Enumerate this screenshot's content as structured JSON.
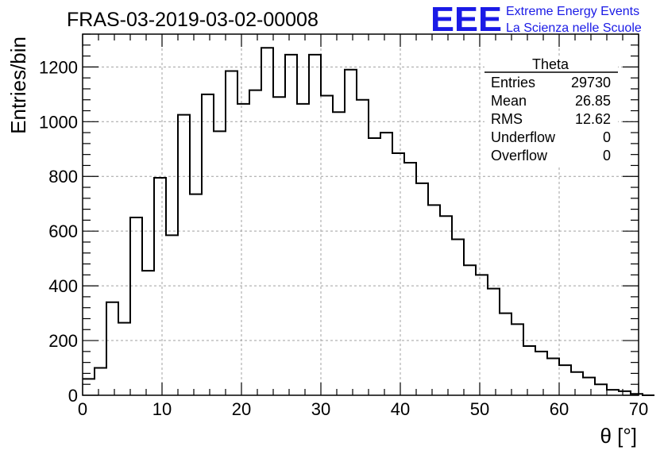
{
  "title": "FRAS-03-2019-03-02-00008",
  "logo": {
    "mark": "EEE",
    "line1": "Extreme Energy Events",
    "line2": "La Scienza nelle Scuole",
    "color": "#1a1ae6"
  },
  "stats_box": {
    "name": "Theta",
    "rows": [
      {
        "label": "Entries",
        "value": "29730"
      },
      {
        "label": "Mean",
        "value": "26.85"
      },
      {
        "label": "RMS",
        "value": "12.62"
      },
      {
        "label": "Underflow",
        "value": "0"
      },
      {
        "label": "Overflow",
        "value": "0"
      }
    ]
  },
  "chart_data": {
    "type": "histogram",
    "title": "FRAS-03-2019-03-02-00008",
    "xlabel": "θ [°]",
    "ylabel": "Entries/bin",
    "xlim": [
      0,
      70
    ],
    "ylim": [
      0,
      1320
    ],
    "x_ticks": [
      0,
      10,
      20,
      30,
      40,
      50,
      60,
      70
    ],
    "y_ticks": [
      0,
      200,
      400,
      600,
      800,
      1000,
      1200
    ],
    "grid": true,
    "bin_width": 1.5,
    "bin_start": 0,
    "values": [
      60,
      100,
      340,
      265,
      650,
      455,
      795,
      585,
      1025,
      735,
      1100,
      965,
      1185,
      1065,
      1115,
      1270,
      1090,
      1245,
      1065,
      1245,
      1095,
      1035,
      1190,
      1080,
      940,
      960,
      885,
      850,
      775,
      695,
      655,
      570,
      475,
      440,
      390,
      300,
      260,
      180,
      160,
      135,
      110,
      85,
      65,
      40,
      20,
      15,
      5,
      0
    ],
    "line_color": "#000000"
  }
}
